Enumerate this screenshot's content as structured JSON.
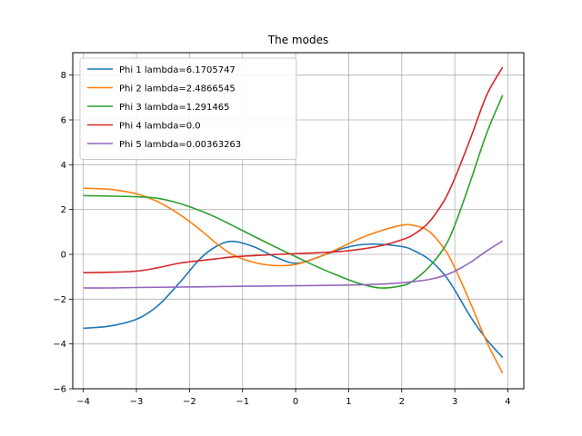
{
  "chart_data": {
    "type": "line",
    "title": "The modes",
    "xlabel": "",
    "ylabel": "",
    "xlim": [
      -4.2,
      4.3
    ],
    "ylim": [
      -6,
      9
    ],
    "xticks": [
      -4,
      -3,
      -2,
      -1,
      0,
      1,
      2,
      3,
      4
    ],
    "yticks": [
      -6,
      -4,
      -2,
      0,
      2,
      4,
      6,
      8
    ],
    "xtick_labels": [
      "−4",
      "−3",
      "−2",
      "−1",
      "0",
      "1",
      "2",
      "3",
      "4"
    ],
    "ytick_labels": [
      "−6",
      "−4",
      "−2",
      "0",
      "2",
      "4",
      "6",
      "8"
    ],
    "grid": true,
    "legend_position": "top-left",
    "x": [
      -4.0,
      -3.5,
      -3.0,
      -2.6,
      -2.2,
      -1.8,
      -1.5,
      -1.2,
      -0.8,
      -0.4,
      0.0,
      0.4,
      0.8,
      1.2,
      1.6,
      2.0,
      2.2,
      2.5,
      2.8,
      3.0,
      3.3,
      3.6,
      3.9
    ],
    "series": [
      {
        "name": "Phi 1 lambda=6.1705747",
        "color": "#1f77b4",
        "values": [
          -3.3,
          -3.2,
          -2.9,
          -2.3,
          -1.3,
          -0.2,
          0.35,
          0.58,
          0.35,
          -0.1,
          -0.4,
          -0.15,
          0.2,
          0.42,
          0.45,
          0.35,
          0.2,
          -0.2,
          -0.9,
          -1.6,
          -2.8,
          -3.8,
          -4.6
        ]
      },
      {
        "name": "Phi 2 lambda=2.4866545",
        "color": "#ff7f0e",
        "values": [
          2.95,
          2.9,
          2.7,
          2.35,
          1.8,
          1.1,
          0.5,
          0.0,
          -0.35,
          -0.5,
          -0.45,
          -0.15,
          0.25,
          0.7,
          1.05,
          1.3,
          1.3,
          1.05,
          0.25,
          -0.6,
          -2.2,
          -3.9,
          -5.3
        ]
      },
      {
        "name": "Phi 3 lambda=1.291465",
        "color": "#2ca02c",
        "values": [
          2.62,
          2.6,
          2.57,
          2.5,
          2.28,
          1.95,
          1.65,
          1.3,
          0.82,
          0.35,
          -0.1,
          -0.55,
          -0.95,
          -1.3,
          -1.5,
          -1.4,
          -1.2,
          -0.6,
          0.3,
          1.3,
          3.3,
          5.4,
          7.1
        ]
      },
      {
        "name": "Phi 4 lambda=0.0",
        "color": "#d62728",
        "values": [
          -0.82,
          -0.8,
          -0.75,
          -0.6,
          -0.4,
          -0.28,
          -0.2,
          -0.12,
          -0.06,
          -0.01,
          0.03,
          0.07,
          0.12,
          0.22,
          0.38,
          0.65,
          0.85,
          1.4,
          2.4,
          3.4,
          5.2,
          7.1,
          8.35
        ]
      },
      {
        "name": "Phi 5 lambda=0.00363263",
        "color": "#9467bd",
        "values": [
          -1.5,
          -1.5,
          -1.48,
          -1.47,
          -1.46,
          -1.45,
          -1.44,
          -1.43,
          -1.42,
          -1.41,
          -1.4,
          -1.39,
          -1.38,
          -1.36,
          -1.33,
          -1.27,
          -1.22,
          -1.13,
          -0.95,
          -0.75,
          -0.35,
          0.15,
          0.6
        ]
      }
    ]
  }
}
